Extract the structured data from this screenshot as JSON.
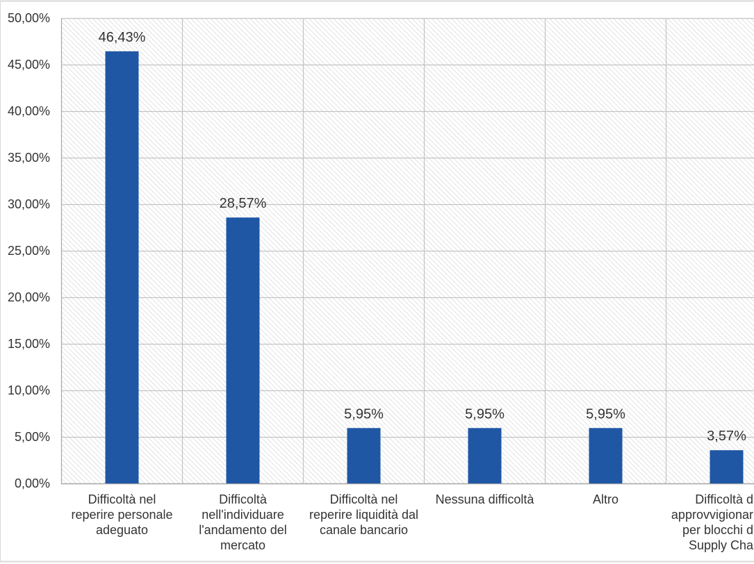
{
  "chart_data": {
    "type": "bar",
    "categories": [
      "Difficoltà nel\nreperire personale\nadeguato",
      "Difficoltà\nnell'individuare\nl'andamento del\nmercato",
      "Difficoltà nel\nreperire liquidità dal\ncanale bancario",
      "Nessuna difficoltà",
      "Altro",
      "Difficoltà d\napprovvigionar\nper blocchi d\nSupply Cha"
    ],
    "values": [
      46.43,
      28.57,
      5.95,
      5.95,
      5.95,
      3.57
    ],
    "value_labels": [
      "46,43%",
      "28,57%",
      "5,95%",
      "5,95%",
      "5,95%",
      "3,57%"
    ],
    "y_tick_values": [
      0,
      5,
      10,
      15,
      20,
      25,
      30,
      35,
      40,
      45,
      50
    ],
    "y_tick_labels": [
      "0,00%",
      "5,00%",
      "10,00%",
      "15,00%",
      "20,00%",
      "25,00%",
      "30,00%",
      "35,00%",
      "40,00%",
      "45,00%",
      "50,00%"
    ],
    "ylim": [
      0,
      50
    ],
    "grid": true
  },
  "colors": {
    "bar": "#1f57a4",
    "grid": "#c3c3c3",
    "axis": "#a6a6a6",
    "hatch": "#d2d2d2",
    "frame": "#d9d9d9",
    "text": "#333333"
  }
}
